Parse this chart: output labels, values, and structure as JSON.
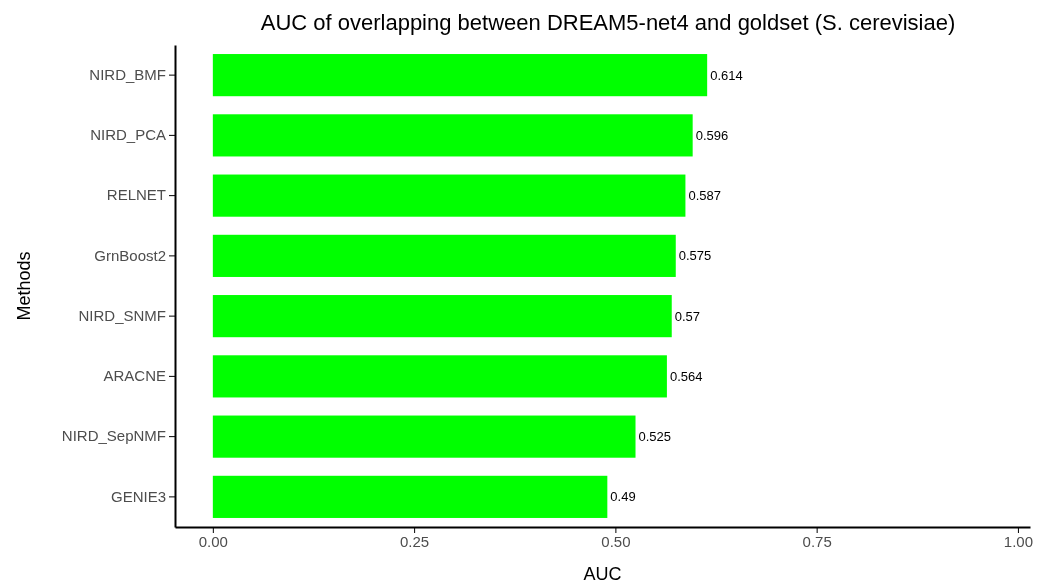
{
  "chart_data": {
    "type": "bar",
    "orientation": "horizontal",
    "title": "AUC of overlapping between DREAM5-net4 and goldset (S. cerevisiae)",
    "xlabel": "AUC",
    "ylabel": "Methods",
    "categories": [
      "NIRD_BMF",
      "NIRD_PCA",
      "RELNET",
      "GrnBoost2",
      "NIRD_SNMF",
      "ARACNE",
      "NIRD_SepNMF",
      "GENIE3"
    ],
    "values": [
      0.614,
      0.596,
      0.587,
      0.575,
      0.57,
      0.564,
      0.525,
      0.49
    ],
    "color": "#00ff00",
    "xlim": [
      -0.047,
      1.015
    ],
    "xticks": [
      {
        "value": 0,
        "label": "0.00"
      },
      {
        "value": 0.25,
        "label": "0.25"
      },
      {
        "value": 0.5,
        "label": "0.50"
      },
      {
        "value": 0.75,
        "label": "0.75"
      },
      {
        "value": 1,
        "label": "1.00"
      }
    ],
    "grid": false,
    "data_labels": true
  }
}
